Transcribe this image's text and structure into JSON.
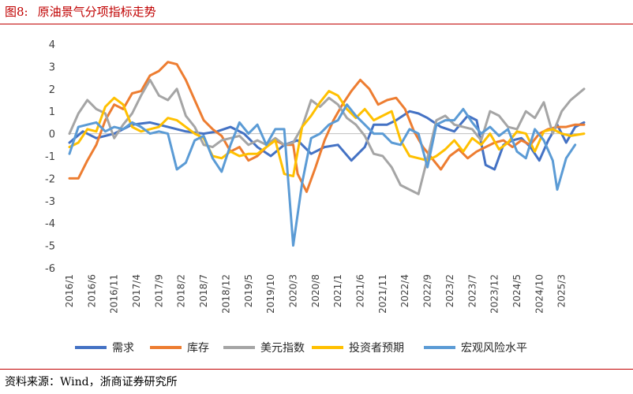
{
  "figure": {
    "label": "图8:",
    "title": "原油景气分项指标走势"
  },
  "source": "资料来源：Wind，浙商证券研究所",
  "chart_data": {
    "type": "line",
    "title": "原油景气分项指标走势",
    "xlabel": "",
    "ylabel": "",
    "ylim": [
      -6,
      4
    ],
    "yticks": [
      4,
      3,
      2,
      1,
      0,
      -1,
      -2,
      -3,
      -4,
      -5,
      -6
    ],
    "grid": false,
    "legend_position": "bottom",
    "x_start": "2016/1",
    "x_ticks": [
      "2016/1",
      "2016/6",
      "2016/11",
      "2017/4",
      "2017/9",
      "2018/2",
      "2018/7",
      "2018/12",
      "2019/5",
      "2019/10",
      "2020/3",
      "2020/8",
      "2021/1",
      "2021/6",
      "2021/11",
      "2022/4",
      "2022/9",
      "2023/2",
      "2023/7",
      "2023/12",
      "2024/5",
      "2024/10",
      "2025/3"
    ],
    "x_max_index": 115,
    "series": [
      {
        "name": "需求",
        "color": "#4472c4",
        "points": [
          [
            0,
            -0.4
          ],
          [
            3,
            0.1
          ],
          [
            6,
            -0.2
          ],
          [
            10,
            0
          ],
          [
            14,
            0.4
          ],
          [
            18,
            0.5
          ],
          [
            22,
            0.3
          ],
          [
            26,
            0.1
          ],
          [
            30,
            0
          ],
          [
            33,
            0.1
          ],
          [
            36,
            0.3
          ],
          [
            39,
            0
          ],
          [
            42,
            -0.6
          ],
          [
            45,
            -1
          ],
          [
            48,
            -0.5
          ],
          [
            51,
            -0.3
          ],
          [
            54,
            -0.9
          ],
          [
            57,
            -0.6
          ],
          [
            60,
            -0.5
          ],
          [
            63,
            -1.2
          ],
          [
            66,
            -0.6
          ],
          [
            68,
            0.4
          ],
          [
            71,
            0.4
          ],
          [
            73,
            0.6
          ],
          [
            76,
            1
          ],
          [
            78,
            0.9
          ],
          [
            80,
            0.7
          ],
          [
            83,
            0.3
          ],
          [
            86,
            0.1
          ],
          [
            89,
            0.8
          ],
          [
            91,
            0.6
          ],
          [
            93,
            -1.4
          ],
          [
            95,
            -1.6
          ],
          [
            97,
            -0.5
          ],
          [
            99,
            -0.3
          ],
          [
            101,
            -0.2
          ],
          [
            103,
            -0.6
          ],
          [
            105,
            -1.2
          ],
          [
            107,
            -0.3
          ],
          [
            109,
            0.4
          ],
          [
            111,
            -0.4
          ],
          [
            113,
            0.3
          ],
          [
            115,
            0.5
          ]
        ]
      },
      {
        "name": "库存",
        "color": "#ed7d31",
        "points": [
          [
            0,
            -2
          ],
          [
            2,
            -2
          ],
          [
            4,
            -1.2
          ],
          [
            6,
            -0.5
          ],
          [
            8,
            0.6
          ],
          [
            10,
            1.3
          ],
          [
            12,
            1.1
          ],
          [
            14,
            1.8
          ],
          [
            16,
            1.9
          ],
          [
            18,
            2.6
          ],
          [
            20,
            2.8
          ],
          [
            22,
            3.2
          ],
          [
            24,
            3.1
          ],
          [
            26,
            2.4
          ],
          [
            28,
            1.5
          ],
          [
            30,
            0.6
          ],
          [
            32,
            0.2
          ],
          [
            34,
            -0.1
          ],
          [
            36,
            -0.8
          ],
          [
            38,
            -0.6
          ],
          [
            40,
            -1.2
          ],
          [
            42,
            -1
          ],
          [
            44,
            -0.6
          ],
          [
            46,
            -0.3
          ],
          [
            48,
            -0.5
          ],
          [
            50,
            -0.5
          ],
          [
            51,
            -1.8
          ],
          [
            53,
            -2.6
          ],
          [
            55,
            -1.5
          ],
          [
            57,
            -0.3
          ],
          [
            59,
            0.6
          ],
          [
            61,
            1.3
          ],
          [
            63,
            1.9
          ],
          [
            65,
            2.4
          ],
          [
            67,
            2
          ],
          [
            69,
            1.3
          ],
          [
            71,
            1.5
          ],
          [
            73,
            1.6
          ],
          [
            75,
            1.1
          ],
          [
            77,
            0.1
          ],
          [
            79,
            -0.6
          ],
          [
            81,
            -1.1
          ],
          [
            83,
            -1.6
          ],
          [
            85,
            -1
          ],
          [
            87,
            -0.7
          ],
          [
            89,
            -1.1
          ],
          [
            91,
            -0.8
          ],
          [
            93,
            -0.6
          ],
          [
            95,
            -0.4
          ],
          [
            97,
            -0.3
          ],
          [
            99,
            -0.6
          ],
          [
            101,
            -0.3
          ],
          [
            103,
            -0.5
          ],
          [
            105,
            0
          ],
          [
            107,
            0.2
          ],
          [
            109,
            0.3
          ],
          [
            111,
            0.3
          ],
          [
            113,
            0.4
          ],
          [
            115,
            0.4
          ]
        ]
      },
      {
        "name": "美元指数",
        "color": "#a5a5a5",
        "points": [
          [
            0,
            0
          ],
          [
            2,
            0.9
          ],
          [
            4,
            1.5
          ],
          [
            6,
            1.1
          ],
          [
            8,
            0.9
          ],
          [
            10,
            -0.2
          ],
          [
            12,
            0.4
          ],
          [
            14,
            0.9
          ],
          [
            16,
            1.7
          ],
          [
            18,
            2.4
          ],
          [
            20,
            1.7
          ],
          [
            22,
            1.5
          ],
          [
            24,
            2
          ],
          [
            26,
            0.8
          ],
          [
            28,
            0.3
          ],
          [
            30,
            -0.5
          ],
          [
            32,
            -0.6
          ],
          [
            34,
            -0.3
          ],
          [
            36,
            -0.2
          ],
          [
            38,
            -0.1
          ],
          [
            40,
            -0.5
          ],
          [
            42,
            -0.3
          ],
          [
            44,
            -0.5
          ],
          [
            46,
            -0.2
          ],
          [
            48,
            -0.5
          ],
          [
            50,
            -0.4
          ],
          [
            52,
            0.3
          ],
          [
            54,
            1.5
          ],
          [
            56,
            1.2
          ],
          [
            58,
            1.6
          ],
          [
            60,
            1.3
          ],
          [
            62,
            0.7
          ],
          [
            64,
            0.4
          ],
          [
            66,
            -0.1
          ],
          [
            68,
            -0.9
          ],
          [
            70,
            -1
          ],
          [
            72,
            -1.5
          ],
          [
            74,
            -2.3
          ],
          [
            76,
            -2.5
          ],
          [
            78,
            -2.7
          ],
          [
            80,
            -1.1
          ],
          [
            82,
            0.6
          ],
          [
            84,
            0.8
          ],
          [
            86,
            0.4
          ],
          [
            88,
            0.3
          ],
          [
            90,
            0.2
          ],
          [
            92,
            -0.3
          ],
          [
            94,
            1
          ],
          [
            96,
            0.8
          ],
          [
            98,
            0.3
          ],
          [
            100,
            0.2
          ],
          [
            102,
            1
          ],
          [
            104,
            0.7
          ],
          [
            106,
            1.4
          ],
          [
            108,
            0
          ],
          [
            110,
            1
          ],
          [
            112,
            1.5
          ],
          [
            115,
            2
          ]
        ]
      },
      {
        "name": "投资者预期",
        "color": "#ffc000",
        "points": [
          [
            0,
            -0.6
          ],
          [
            2,
            -0.4
          ],
          [
            4,
            0.2
          ],
          [
            6,
            0.1
          ],
          [
            8,
            1.2
          ],
          [
            10,
            1.6
          ],
          [
            12,
            1.3
          ],
          [
            14,
            0.3
          ],
          [
            16,
            0.1
          ],
          [
            18,
            0.2
          ],
          [
            20,
            0.3
          ],
          [
            22,
            0.7
          ],
          [
            24,
            0.6
          ],
          [
            26,
            0.3
          ],
          [
            28,
            0
          ],
          [
            30,
            -0.2
          ],
          [
            32,
            -1
          ],
          [
            34,
            -1.1
          ],
          [
            36,
            -0.8
          ],
          [
            38,
            -1
          ],
          [
            40,
            -0.9
          ],
          [
            42,
            -0.9
          ],
          [
            44,
            -0.6
          ],
          [
            46,
            -0.3
          ],
          [
            48,
            -1.8
          ],
          [
            50,
            -1.9
          ],
          [
            52,
            0.3
          ],
          [
            54,
            0.8
          ],
          [
            56,
            1.4
          ],
          [
            58,
            1.9
          ],
          [
            60,
            1.7
          ],
          [
            62,
            1.1
          ],
          [
            64,
            0.7
          ],
          [
            66,
            1.1
          ],
          [
            68,
            0.6
          ],
          [
            70,
            0.8
          ],
          [
            72,
            1
          ],
          [
            74,
            -0.3
          ],
          [
            76,
            -1
          ],
          [
            78,
            -1.1
          ],
          [
            80,
            -1.2
          ],
          [
            82,
            -1
          ],
          [
            84,
            -0.7
          ],
          [
            86,
            -0.3
          ],
          [
            88,
            -0.8
          ],
          [
            90,
            -0.2
          ],
          [
            92,
            -0.5
          ],
          [
            94,
            0
          ],
          [
            96,
            -0.7
          ],
          [
            98,
            -0.4
          ],
          [
            100,
            0.1
          ],
          [
            102,
            0
          ],
          [
            104,
            -0.8
          ],
          [
            106,
            0.1
          ],
          [
            108,
            0.2
          ],
          [
            110,
            0
          ],
          [
            112,
            -0.1
          ],
          [
            115,
            0
          ]
        ]
      },
      {
        "name": "宏观风险水平",
        "color": "#5b9bd5",
        "points": [
          [
            0,
            -0.9
          ],
          [
            2,
            0.3
          ],
          [
            4,
            0.4
          ],
          [
            6,
            0.5
          ],
          [
            8,
            0.1
          ],
          [
            10,
            0.3
          ],
          [
            12,
            0.2
          ],
          [
            14,
            0.5
          ],
          [
            16,
            0.3
          ],
          [
            18,
            0
          ],
          [
            20,
            0.1
          ],
          [
            22,
            0
          ],
          [
            24,
            -1.6
          ],
          [
            26,
            -1.3
          ],
          [
            28,
            -0.3
          ],
          [
            30,
            -0.1
          ],
          [
            32,
            -1.1
          ],
          [
            34,
            -1.7
          ],
          [
            36,
            -0.5
          ],
          [
            38,
            0.5
          ],
          [
            40,
            0
          ],
          [
            42,
            0.4
          ],
          [
            44,
            -0.5
          ],
          [
            46,
            0.2
          ],
          [
            48,
            0.2
          ],
          [
            50,
            -5
          ],
          [
            52,
            -2.2
          ],
          [
            54,
            -0.2
          ],
          [
            56,
            0
          ],
          [
            58,
            0.4
          ],
          [
            60,
            0.6
          ],
          [
            62,
            1.3
          ],
          [
            64,
            0.8
          ],
          [
            66,
            0.4
          ],
          [
            68,
            0
          ],
          [
            70,
            0
          ],
          [
            72,
            -0.4
          ],
          [
            74,
            -0.5
          ],
          [
            76,
            0.2
          ],
          [
            78,
            0
          ],
          [
            80,
            -1.5
          ],
          [
            82,
            0.4
          ],
          [
            84,
            0.6
          ],
          [
            86,
            0.6
          ],
          [
            88,
            1.1
          ],
          [
            90,
            0.5
          ],
          [
            92,
            0
          ],
          [
            94,
            0.3
          ],
          [
            96,
            -0.1
          ],
          [
            98,
            0.2
          ],
          [
            100,
            -0.8
          ],
          [
            102,
            -1.1
          ],
          [
            104,
            0.2
          ],
          [
            106,
            -0.3
          ],
          [
            108,
            -1.2
          ],
          [
            109,
            -2.5
          ],
          [
            111,
            -1.1
          ],
          [
            113,
            -0.5
          ]
        ]
      }
    ]
  }
}
